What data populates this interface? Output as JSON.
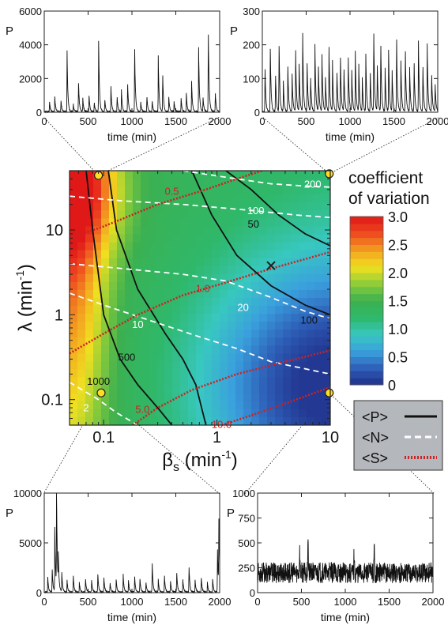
{
  "chart_data": [
    {
      "type": "heatmap",
      "panel": "main",
      "xlabel": "β",
      "xlabel_sub": "s",
      "xlabel_unit": " (min",
      "xlabel_exp": "-1",
      "xlabel_close": ")",
      "ylabel": "λ (min",
      "ylabel_exp": "-1",
      "ylabel_close": ")",
      "xscale": "log",
      "yscale": "log",
      "xlim": [
        0.05,
        10
      ],
      "ylim": [
        0.05,
        50
      ],
      "x_ticks": [
        0.1,
        1,
        10
      ],
      "x_tick_labels": [
        "0.1",
        "1",
        "10"
      ],
      "y_ticks": [
        0.1,
        1,
        10
      ],
      "y_tick_labels": [
        "0.1",
        "1",
        "10"
      ],
      "colorbar": {
        "title_line1": "coefficient",
        "title_line2": "of variation",
        "range": [
          0,
          3.0
        ],
        "ticks": [
          0,
          0.5,
          1.0,
          1.5,
          2.0,
          2.5,
          3.0
        ],
        "tick_labels": [
          "0",
          "0.5",
          "1.0",
          "1.5",
          "2.0",
          "2.5",
          "3.0"
        ],
        "colors": [
          "#20308a",
          "#2e5fb8",
          "#3aa0dd",
          "#38c8c0",
          "#2fb86a",
          "#3cb050",
          "#8ccc3a",
          "#f0e020",
          "#f3a020",
          "#ee4a20",
          "#e01818"
        ]
      },
      "contours_P": [
        {
          "label": "50",
          "points": [
            [
              1.2,
              50
            ],
            [
              2.0,
              30
            ],
            [
              3.5,
              15
            ],
            [
              6,
              9
            ],
            [
              10,
              6.5
            ]
          ]
        },
        {
          "label": "100",
          "points": [
            [
              0.6,
              50
            ],
            [
              0.9,
              15
            ],
            [
              1.5,
              5
            ],
            [
              3,
              2.2
            ],
            [
              6,
              1.3
            ],
            [
              10,
              1
            ]
          ]
        },
        {
          "label": "500",
          "points": [
            [
              0.11,
              50
            ],
            [
              0.13,
              10
            ],
            [
              0.2,
              2
            ],
            [
              0.35,
              0.6
            ],
            [
              0.5,
              0.3
            ],
            [
              0.65,
              0.15
            ],
            [
              0.75,
              0.07
            ],
            [
              0.8,
              0.05
            ]
          ]
        },
        {
          "label": "1000",
          "points": [
            [
              0.07,
              50
            ],
            [
              0.08,
              10
            ],
            [
              0.1,
              1.0
            ],
            [
              0.14,
              0.3
            ],
            [
              0.2,
              0.15
            ],
            [
              0.3,
              0.08
            ],
            [
              0.4,
              0.05
            ]
          ]
        }
      ],
      "contours_N": [
        {
          "label": "200",
          "points": [
            [
              0.5,
              50
            ],
            [
              1.5,
              40
            ],
            [
              3,
              35
            ],
            [
              6,
              33
            ],
            [
              10,
              32
            ]
          ]
        },
        {
          "label": "100",
          "points": [
            [
              0.05,
              25
            ],
            [
              0.15,
              22
            ],
            [
              0.5,
              20
            ],
            [
              2,
              17
            ],
            [
              5,
              15
            ],
            [
              10,
              14
            ]
          ]
        },
        {
          "label": "20",
          "points": [
            [
              0.05,
              4
            ],
            [
              0.15,
              3.5
            ],
            [
              0.5,
              3
            ],
            [
              1.2,
              2.5
            ],
            [
              3,
              1.6
            ],
            [
              6,
              1.1
            ],
            [
              10,
              0.9
            ]
          ]
        },
        {
          "label": "10",
          "points": [
            [
              0.05,
              1.8
            ],
            [
              0.12,
              1.2
            ],
            [
              0.3,
              0.8
            ],
            [
              0.7,
              0.55
            ],
            [
              1.5,
              0.4
            ],
            [
              3,
              0.28
            ],
            [
              10,
              0.2
            ]
          ]
        },
        {
          "label": "2",
          "points": [
            [
              0.05,
              0.16
            ],
            [
              0.09,
              0.1
            ],
            [
              0.13,
              0.07
            ],
            [
              0.2,
              0.05
            ]
          ]
        }
      ],
      "contours_S": [
        {
          "label": "0.5",
          "points": [
            [
              0.05,
              8
            ],
            [
              0.1,
              11
            ],
            [
              0.3,
              20
            ],
            [
              0.8,
              30
            ],
            [
              1.5,
              40
            ],
            [
              2.5,
              50
            ]
          ]
        },
        {
          "label": "1.0",
          "points": [
            [
              0.05,
              0.35
            ],
            [
              0.1,
              0.6
            ],
            [
              0.2,
              1.0
            ],
            [
              0.5,
              1.7
            ],
            [
              1.2,
              2.4
            ],
            [
              3,
              3.5
            ],
            [
              10,
              5.5
            ]
          ]
        },
        {
          "label": "5.0",
          "points": [
            [
              0.18,
              0.05
            ],
            [
              0.3,
              0.08
            ],
            [
              0.6,
              0.13
            ],
            [
              1.5,
              0.2
            ],
            [
              4,
              0.28
            ],
            [
              10,
              0.38
            ]
          ]
        },
        {
          "label": "10.0",
          "points": [
            [
              1.1,
              0.05
            ],
            [
              2,
              0.065
            ],
            [
              5,
              0.1
            ],
            [
              10,
              0.14
            ]
          ]
        }
      ],
      "contour_label_positions": [
        {
          "text": "0.5",
          "x": 0.4,
          "y": 28,
          "series": "S"
        },
        {
          "text": "200",
          "x": 7,
          "y": 34,
          "series": "N"
        },
        {
          "text": "100",
          "x": 2.2,
          "y": 16.5,
          "series": "N"
        },
        {
          "text": "50",
          "x": 2.1,
          "y": 11.5,
          "series": "P"
        },
        {
          "text": "1.0",
          "x": 0.75,
          "y": 2.0,
          "series": "S"
        },
        {
          "text": "20",
          "x": 1.7,
          "y": 1.2,
          "series": "N"
        },
        {
          "text": "100",
          "x": 6.5,
          "y": 0.85,
          "series": "P"
        },
        {
          "text": "10",
          "x": 0.2,
          "y": 0.75,
          "series": "N"
        },
        {
          "text": "500",
          "x": 0.16,
          "y": 0.31,
          "series": "P"
        },
        {
          "text": "1000",
          "x": 0.09,
          "y": 0.16,
          "series": "P"
        },
        {
          "text": "2",
          "x": 0.07,
          "y": 0.078,
          "series": "N"
        },
        {
          "text": "5.0",
          "x": 0.22,
          "y": 0.075,
          "series": "S"
        },
        {
          "text": "10.0",
          "x": 1.1,
          "y": 0.05,
          "series": "S"
        }
      ],
      "markers": [
        {
          "shape": "circle",
          "x": 0.09,
          "y": 44
        },
        {
          "shape": "circle",
          "x": 9.8,
          "y": 46
        },
        {
          "shape": "circle",
          "x": 0.095,
          "y": 0.12
        },
        {
          "shape": "circle",
          "x": 9.8,
          "y": 0.12
        },
        {
          "shape": "cross",
          "x": 3,
          "y": 3.8
        }
      ],
      "legend": {
        "placement": "bottom-right",
        "entries": [
          {
            "label": "<P>",
            "color": "#111111",
            "style": "solid"
          },
          {
            "label": "<N>",
            "color": "#ffffff",
            "style": "dashed"
          },
          {
            "label": "<S>",
            "color": "#cc2222",
            "style": "dotted"
          }
        ]
      }
    },
    {
      "type": "line",
      "panel": "top-left",
      "xlabel": "time  (min)",
      "ylabel": "P",
      "xlim": [
        0,
        2000
      ],
      "ylim": [
        0,
        6000
      ],
      "x_ticks": [
        0,
        500,
        1000,
        1500,
        2000
      ],
      "y_ticks": [
        0,
        2000,
        4000,
        6000
      ],
      "spikes": [
        [
          60,
          600
        ],
        [
          120,
          900
        ],
        [
          190,
          700
        ],
        [
          260,
          3600
        ],
        [
          330,
          500
        ],
        [
          390,
          1900
        ],
        [
          440,
          800
        ],
        [
          510,
          1100
        ],
        [
          570,
          600
        ],
        [
          620,
          4200
        ],
        [
          690,
          800
        ],
        [
          760,
          1500
        ],
        [
          830,
          1000
        ],
        [
          880,
          1300
        ],
        [
          950,
          1800
        ],
        [
          1030,
          4200
        ],
        [
          1100,
          600
        ],
        [
          1170,
          1000
        ],
        [
          1230,
          700
        ],
        [
          1300,
          3300
        ],
        [
          1350,
          2400
        ],
        [
          1420,
          900
        ],
        [
          1480,
          600
        ],
        [
          1560,
          800
        ],
        [
          1620,
          1100
        ],
        [
          1680,
          1800
        ],
        [
          1760,
          3800
        ],
        [
          1810,
          900
        ],
        [
          1870,
          5200
        ],
        [
          1950,
          1200
        ]
      ]
    },
    {
      "type": "line",
      "panel": "top-right",
      "xlabel": "time  (min)",
      "ylabel": "P",
      "xlim": [
        0,
        2000
      ],
      "ylim": [
        0,
        300
      ],
      "x_ticks": [
        0,
        500,
        1000,
        1500,
        2000
      ],
      "y_ticks": [
        0,
        100,
        200,
        300
      ],
      "spikes": [
        [
          30,
          140
        ],
        [
          90,
          210
        ],
        [
          150,
          120
        ],
        [
          190,
          220
        ],
        [
          240,
          90
        ],
        [
          290,
          150
        ],
        [
          340,
          110
        ],
        [
          380,
          180
        ],
        [
          420,
          140
        ],
        [
          460,
          230
        ],
        [
          510,
          160
        ],
        [
          550,
          110
        ],
        [
          600,
          200
        ],
        [
          640,
          130
        ],
        [
          680,
          170
        ],
        [
          720,
          100
        ],
        [
          760,
          190
        ],
        [
          800,
          150
        ],
        [
          850,
          130
        ],
        [
          890,
          180
        ],
        [
          930,
          140
        ],
        [
          980,
          160
        ],
        [
          1020,
          120
        ],
        [
          1060,
          180
        ],
        [
          1100,
          140
        ],
        [
          1140,
          100
        ],
        [
          1180,
          170
        ],
        [
          1230,
          130
        ],
        [
          1270,
          260
        ],
        [
          1310,
          150
        ],
        [
          1350,
          220
        ],
        [
          1400,
          130
        ],
        [
          1440,
          180
        ],
        [
          1480,
          120
        ],
        [
          1530,
          240
        ],
        [
          1580,
          150
        ],
        [
          1630,
          200
        ],
        [
          1680,
          130
        ],
        [
          1730,
          160
        ],
        [
          1780,
          210
        ],
        [
          1830,
          150
        ],
        [
          1880,
          200
        ],
        [
          1930,
          120
        ],
        [
          1970,
          90
        ]
      ]
    },
    {
      "type": "line",
      "panel": "bottom-left",
      "xlabel": "time  (min)",
      "ylabel": "P",
      "xlim": [
        0,
        2000
      ],
      "ylim": [
        0,
        10000
      ],
      "x_ticks": [
        0,
        500,
        1000,
        1500,
        2000
      ],
      "y_ticks": [
        0,
        5000,
        10000
      ],
      "spikes": [
        [
          40,
          1500
        ],
        [
          90,
          2500
        ],
        [
          120,
          6500
        ],
        [
          140,
          9800
        ],
        [
          160,
          3000
        ],
        [
          200,
          2000
        ],
        [
          260,
          1200
        ],
        [
          330,
          1800
        ],
        [
          400,
          1000
        ],
        [
          470,
          1500
        ],
        [
          540,
          1200
        ],
        [
          610,
          2000
        ],
        [
          680,
          1500
        ],
        [
          750,
          1000
        ],
        [
          820,
          1300
        ],
        [
          900,
          1800
        ],
        [
          960,
          1200
        ],
        [
          1030,
          1700
        ],
        [
          1090,
          1500
        ],
        [
          1160,
          1000
        ],
        [
          1230,
          3200
        ],
        [
          1300,
          1300
        ],
        [
          1370,
          1800
        ],
        [
          1440,
          1100
        ],
        [
          1510,
          2200
        ],
        [
          1580,
          1300
        ],
        [
          1650,
          2800
        ],
        [
          1720,
          1200
        ],
        [
          1790,
          1600
        ],
        [
          1860,
          1000
        ],
        [
          1920,
          1300
        ],
        [
          1975,
          4500
        ],
        [
          1990,
          7500
        ]
      ]
    },
    {
      "type": "line",
      "panel": "bottom-right",
      "xlabel": "time  (min)",
      "ylabel": "P",
      "xlim": [
        0,
        2000
      ],
      "ylim": [
        0,
        1000
      ],
      "x_ticks": [
        0,
        500,
        1000,
        1500,
        2000
      ],
      "y_ticks": [
        0,
        250,
        500,
        750,
        1000
      ],
      "baseline": 200,
      "noise": 130,
      "peaks": [
        [
          575,
          600
        ],
        [
          480,
          420
        ],
        [
          1330,
          430
        ],
        [
          1100,
          390
        ]
      ]
    }
  ]
}
